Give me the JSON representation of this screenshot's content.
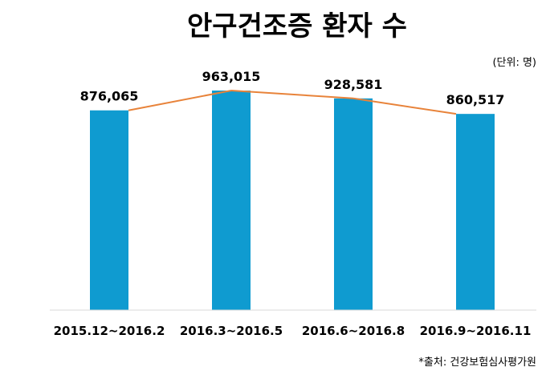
{
  "chart_data": {
    "type": "bar",
    "title": "안구건조증 환자 수",
    "unit_note": "(단위: 명)",
    "source": "*출처: 건강보험심사평가원",
    "categories": [
      "2015.12~2016.2",
      "2016.3~2016.5",
      "2016.6~2016.8",
      "2016.9~2016.11"
    ],
    "values": [
      876065,
      963015,
      928581,
      860517
    ],
    "value_labels": [
      "876,065",
      "963,015",
      "928,581",
      "860,517"
    ],
    "trend_line": true,
    "grid": false,
    "colors": {
      "bar": "#0F9BD0",
      "line": "#E8833A",
      "axis": "#D9D9D9"
    }
  }
}
